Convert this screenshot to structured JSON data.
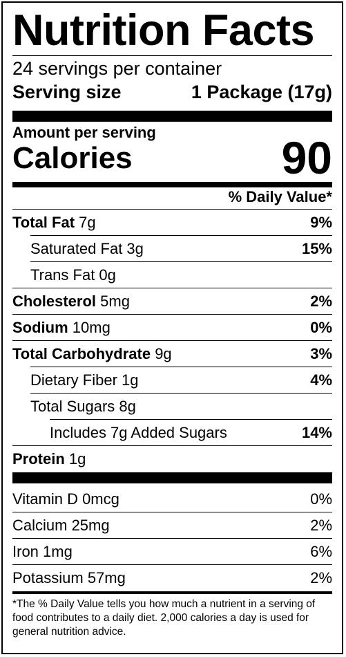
{
  "title": "Nutrition Facts",
  "servings_per_container": "24 servings per container",
  "serving_size": {
    "label": "Serving size",
    "value": "1 Package (17g)"
  },
  "amount_per_serving": "Amount per serving",
  "calories": {
    "label": "Calories",
    "value": "90"
  },
  "daily_value_header": "% Daily Value*",
  "nutrients": [
    {
      "name": "Total Fat",
      "amount": "7g",
      "dv": "9%",
      "bold": true,
      "indent": 0
    },
    {
      "name": "Saturated Fat 3g",
      "amount": "",
      "dv": "15%",
      "bold": false,
      "indent": 1
    },
    {
      "name": "Trans Fat 0g",
      "amount": "",
      "dv": "",
      "bold": false,
      "indent": 1
    },
    {
      "name": "Cholesterol",
      "amount": "5mg",
      "dv": "2%",
      "bold": true,
      "indent": 0
    },
    {
      "name": "Sodium",
      "amount": "10mg",
      "dv": "0%",
      "bold": true,
      "indent": 0
    },
    {
      "name": "Total Carbohydrate",
      "amount": "9g",
      "dv": "3%",
      "bold": true,
      "indent": 0
    },
    {
      "name": "Dietary Fiber 1g",
      "amount": "",
      "dv": "4%",
      "bold": false,
      "indent": 1
    },
    {
      "name": "Total Sugars 8g",
      "amount": "",
      "dv": "",
      "bold": false,
      "indent": 1
    },
    {
      "name": "Includes 7g Added Sugars",
      "amount": "",
      "dv": "14%",
      "bold": false,
      "indent": 2
    },
    {
      "name": "Protein",
      "amount": "1g",
      "dv": "",
      "bold": true,
      "indent": 0
    }
  ],
  "vitamins": [
    {
      "name": "Vitamin D 0mcg",
      "dv": "0%"
    },
    {
      "name": "Calcium 25mg",
      "dv": "2%"
    },
    {
      "name": "Iron 1mg",
      "dv": "6%"
    },
    {
      "name": "Potassium 57mg",
      "dv": "2%"
    }
  ],
  "footnote": "*The % Daily Value tells you how much a nutrient in a serving of food contributes to a daily diet. 2,000 calories a day is used for general nutrition advice."
}
